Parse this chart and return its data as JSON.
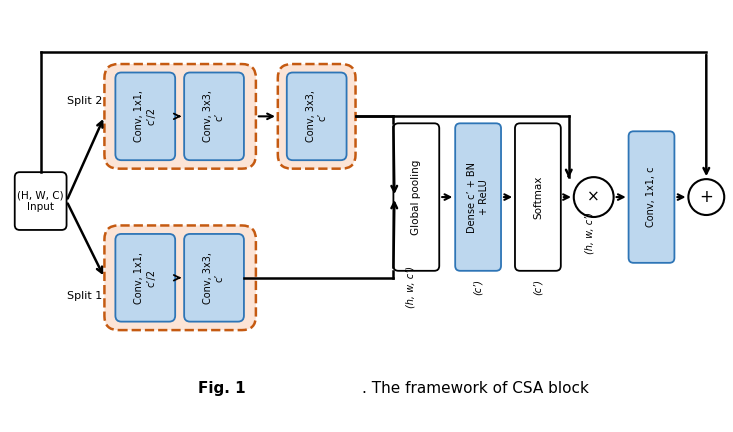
{
  "bg_color": "#ffffff",
  "blue_fill": "#bdd7ee",
  "blue_edge": "#2e75b6",
  "orange_fill": "#fce4d6",
  "orange_edge": "#c55a11",
  "white_fill": "#ffffff",
  "black_edge": "#000000",
  "input_label": "(H, W, C)\nInput",
  "split2_label": "Split 2",
  "split1_label": "Split 1",
  "conv_t1_label": "Conv, 1x1,\nc’/2",
  "conv_t2_label": "Conv, 3x3,\nc’",
  "conv_t3_label": "Conv, 3x3,\nc’",
  "conv_b1_label": "Conv, 1x1,\nc’/2",
  "conv_b2_label": "Conv, 3x3,\nc’",
  "global_pool_label": "Global pooling",
  "dense_label": "Dense c’ + BN\n+ ReLU",
  "softmax_label": "Softmax",
  "conv_final_label": "Conv, 1x1, c",
  "dim_hw": "(h, w, c’)",
  "dim_c1": "(c’)",
  "dim_c2": "(c’)",
  "dim_hwc": "(h, w, c’)",
  "mul_sym": "×",
  "add_sym": "+",
  "title_bold": "Fig. 1",
  "title_rest": ". The framework of CSA block"
}
